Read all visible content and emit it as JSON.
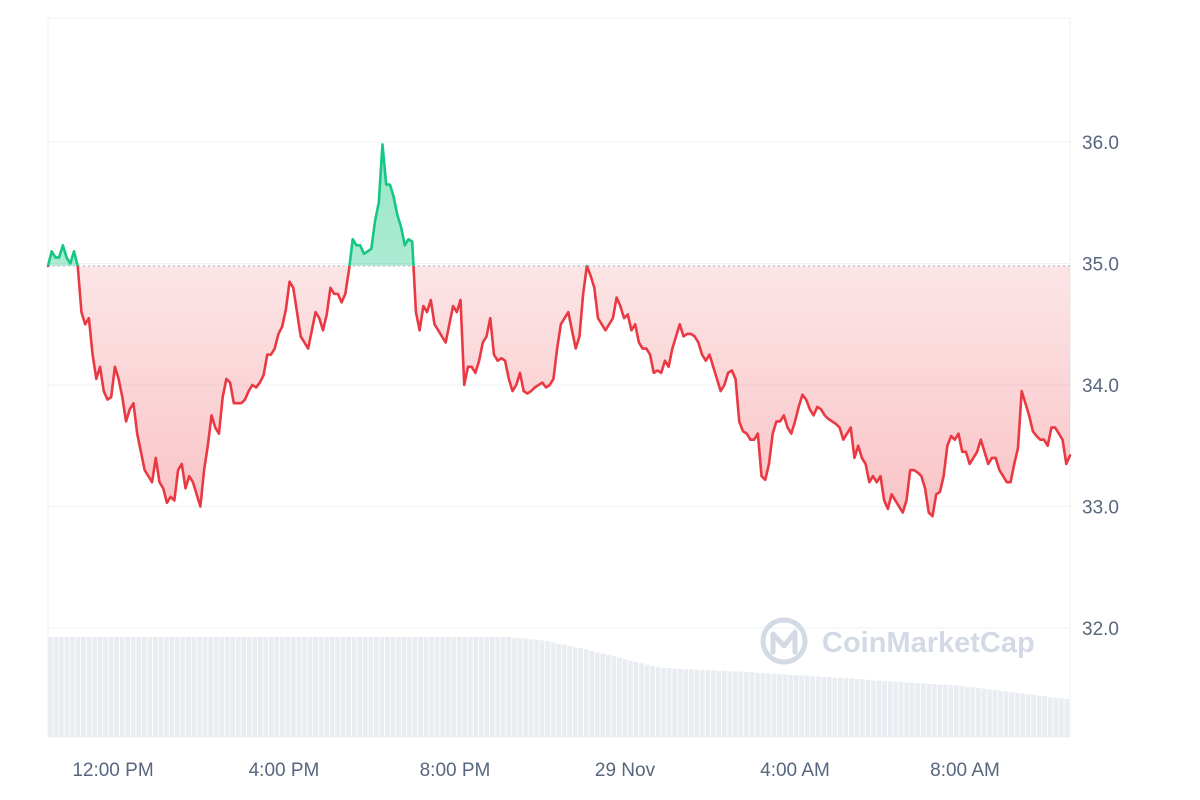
{
  "chart_data": {
    "type": "line",
    "title": "",
    "xlabel": "",
    "ylabel": "",
    "y_ticks": [
      "32.0",
      "33.0",
      "34.0",
      "35.0",
      "36.0"
    ],
    "x_ticks": [
      "12:00 PM",
      "4:00 PM",
      "8:00 PM",
      "29 Nov",
      "4:00 AM",
      "8:00 AM"
    ],
    "ylim": [
      31.0,
      37.0
    ],
    "baseline": 34.98,
    "grid": true,
    "watermark": "CoinMarketCap",
    "colors": {
      "above": "#16c784",
      "below": "#ea3943",
      "grid": "#eff2f5",
      "baseline": "#c1c8d3",
      "volume": "#e9edf2",
      "axis_text": "#58667e"
    },
    "series": [
      {
        "values": [
          34.98,
          35.1,
          35.05,
          35.05,
          35.15,
          35.05,
          35.0,
          35.1,
          34.98,
          34.6,
          34.5,
          34.55,
          34.25,
          34.05,
          34.15,
          33.95,
          33.88,
          33.9,
          34.15,
          34.05,
          33.9,
          33.7,
          33.8,
          33.85,
          33.6,
          33.45,
          33.3,
          33.25,
          33.2,
          33.4,
          33.2,
          33.15,
          33.03,
          33.08,
          33.05,
          33.3,
          33.35,
          33.15,
          33.25,
          33.2,
          33.1,
          33.0,
          33.3,
          33.5,
          33.75,
          33.65,
          33.6,
          33.9,
          34.05,
          34.02,
          33.85,
          33.85,
          33.85,
          33.88,
          33.95,
          34.0,
          33.98,
          34.02,
          34.08,
          34.25,
          34.25,
          34.3,
          34.42,
          34.48,
          34.62,
          34.85,
          34.8,
          34.6,
          34.4,
          34.35,
          34.3,
          34.45,
          34.6,
          34.55,
          34.45,
          34.58,
          34.8,
          34.75,
          34.75,
          34.68,
          34.75,
          34.95,
          35.2,
          35.15,
          35.15,
          35.08,
          35.1,
          35.12,
          35.35,
          35.5,
          35.98,
          35.65,
          35.65,
          35.55,
          35.4,
          35.3,
          35.15,
          35.2,
          35.18,
          34.6,
          34.45,
          34.65,
          34.6,
          34.7,
          34.5,
          34.45,
          34.4,
          34.35,
          34.5,
          34.65,
          34.6,
          34.7,
          34.0,
          34.15,
          34.15,
          34.1,
          34.2,
          34.35,
          34.4,
          34.55,
          34.25,
          34.2,
          34.22,
          34.2,
          34.05,
          33.95,
          34.0,
          34.1,
          33.95,
          33.93,
          33.95,
          33.98,
          34.0,
          34.02,
          33.98,
          34.0,
          34.05,
          34.3,
          34.5,
          34.55,
          34.6,
          34.45,
          34.3,
          34.4,
          34.75,
          34.98,
          34.9,
          34.8,
          34.55,
          34.5,
          34.45,
          34.5,
          34.55,
          34.72,
          34.65,
          34.55,
          34.58,
          34.45,
          34.5,
          34.35,
          34.3,
          34.3,
          34.25,
          34.1,
          34.12,
          34.1,
          34.2,
          34.15,
          34.3,
          34.4,
          34.5,
          34.4,
          34.42,
          34.42,
          34.4,
          34.35,
          34.25,
          34.2,
          34.25,
          34.15,
          34.05,
          33.95,
          34.0,
          34.1,
          34.12,
          34.05,
          33.7,
          33.62,
          33.6,
          33.55,
          33.55,
          33.6,
          33.25,
          33.22,
          33.35,
          33.6,
          33.7,
          33.7,
          33.75,
          33.65,
          33.6,
          33.7,
          33.82,
          33.92,
          33.88,
          33.8,
          33.75,
          33.82,
          33.8,
          33.75,
          33.72,
          33.7,
          33.68,
          33.65,
          33.55,
          33.6,
          33.65,
          33.4,
          33.5,
          33.4,
          33.35,
          33.2,
          33.25,
          33.2,
          33.25,
          33.05,
          32.98,
          33.1,
          33.05,
          33.0,
          32.95,
          33.05,
          33.3,
          33.3,
          33.28,
          33.25,
          33.15,
          32.95,
          32.92,
          33.1,
          33.12,
          33.25,
          33.5,
          33.58,
          33.55,
          33.6,
          33.45,
          33.45,
          33.35,
          33.4,
          33.45,
          33.55,
          33.45,
          33.35,
          33.4,
          33.4,
          33.3,
          33.25,
          33.2,
          33.2,
          33.35,
          33.48,
          33.95,
          33.85,
          33.75,
          33.62,
          33.58,
          33.55,
          33.55,
          33.5,
          33.65,
          33.65,
          33.6,
          33.55,
          33.35,
          33.42
        ]
      }
    ],
    "volume_levels": [
      1,
      1,
      1,
      1,
      1,
      1,
      1,
      1,
      1,
      1,
      1,
      1,
      1,
      1,
      1,
      1,
      1,
      1,
      1,
      1,
      1,
      1,
      1,
      1,
      1,
      1,
      1,
      1,
      1,
      1,
      1,
      1,
      1,
      1,
      1,
      1,
      1,
      1,
      1,
      1,
      1,
      1,
      1,
      1,
      1,
      1,
      1,
      1,
      1,
      1,
      1,
      1,
      1,
      1,
      1,
      1,
      1,
      1,
      1,
      1,
      1,
      1,
      1,
      1,
      1,
      1,
      1,
      1,
      1,
      1,
      1,
      1,
      1,
      1,
      1,
      1,
      1,
      1,
      1,
      1,
      1,
      1,
      1,
      1,
      0.99,
      0.99,
      0.98,
      0.97,
      0.96,
      0.95,
      0.94,
      0.92,
      0.9,
      0.89,
      0.87,
      0.85,
      0.84,
      0.82,
      0.8,
      0.78,
      0.76,
      0.74,
      0.72,
      0.7,
      0.68,
      0.66,
      0.64,
      0.62,
      0.6,
      0.58,
      0.56,
      0.55,
      0.55,
      0.54,
      0.54,
      0.53,
      0.53,
      0.53,
      0.52,
      0.52,
      0.52,
      0.51,
      0.51,
      0.5,
      0.5,
      0.5,
      0.49,
      0.49,
      0.48,
      0.48,
      0.47,
      0.47,
      0.46,
      0.46,
      0.45,
      0.45,
      0.44,
      0.44,
      0.43,
      0.43,
      0.42,
      0.42,
      0.41,
      0.41,
      0.4,
      0.4,
      0.39,
      0.39,
      0.38,
      0.37,
      0.37,
      0.36,
      0.36,
      0.35,
      0.35,
      0.34,
      0.34,
      0.33,
      0.33,
      0.32,
      0.32,
      0.31,
      0.31,
      0.3,
      0.3,
      0.29,
      0.28,
      0.27,
      0.26,
      0.25,
      0.24,
      0.23,
      0.22,
      0.21,
      0.2,
      0.19,
      0.18,
      0.17,
      0.16,
      0.15,
      0.14,
      0.13,
      0.12,
      0.11,
      0.1
    ]
  }
}
